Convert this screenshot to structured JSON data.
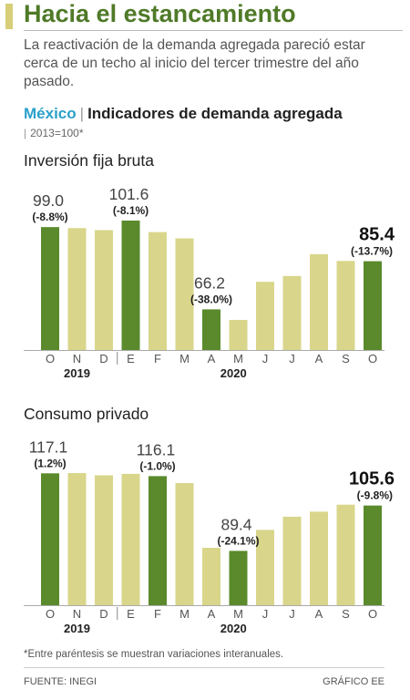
{
  "header": {
    "title": "Hacia el estancamiento",
    "subtitle": "La reactivación de la demanda agregada pareció estar cerca de un techo al inicio del tercer trimestre del año pasado."
  },
  "section": {
    "country": "México",
    "separator": "|",
    "indicator": "Indicadores de demanda agregada",
    "base_pipe": "|",
    "base": "2013=100*"
  },
  "colors": {
    "dark_green": "#5a8a2c",
    "light_green": "#d9d68b",
    "title_green": "#4f7a28",
    "accent_blue": "#2ba0c8"
  },
  "chart_data": [
    {
      "type": "bar",
      "title": "Inversión fija bruta",
      "categories": [
        "O",
        "N",
        "D",
        "E",
        "F",
        "M",
        "A",
        "M",
        "J",
        "J",
        "A",
        "S",
        "O"
      ],
      "year_labels": [
        {
          "label": "2019",
          "start": 0,
          "end": 2
        },
        {
          "label": "2020",
          "start": 3,
          "end": 12
        }
      ],
      "values": [
        99.0,
        98.6,
        97.8,
        101.6,
        97.0,
        94.5,
        66.2,
        62.0,
        77.2,
        79.5,
        88.2,
        85.5,
        85.4
      ],
      "highlight": [
        0,
        3,
        6,
        12
      ],
      "annotations": [
        {
          "index": 0,
          "value": "99.0",
          "change": "(-8.8%)"
        },
        {
          "index": 3,
          "value": "101.6",
          "change": "(-8.1%)"
        },
        {
          "index": 6,
          "value": "66.2",
          "change": "(-38.0%)"
        },
        {
          "index": 12,
          "value": "85.4",
          "change": "(-13.7%)"
        }
      ]
    },
    {
      "type": "bar",
      "title": "Consumo privado",
      "categories": [
        "O",
        "N",
        "D",
        "E",
        "F",
        "M",
        "A",
        "M",
        "J",
        "J",
        "A",
        "S",
        "O"
      ],
      "year_labels": [
        {
          "label": "2019",
          "start": 0,
          "end": 2
        },
        {
          "label": "2020",
          "start": 3,
          "end": 12
        }
      ],
      "values": [
        117.1,
        117.2,
        116.4,
        116.9,
        116.1,
        113.6,
        90.5,
        89.4,
        96.9,
        101.6,
        103.4,
        105.9,
        105.6
      ],
      "highlight": [
        0,
        4,
        7,
        12
      ],
      "annotations": [
        {
          "index": 0,
          "value": "117.1",
          "change": "(1.2%)"
        },
        {
          "index": 4,
          "value": "116.1",
          "change": "(-1.0%)"
        },
        {
          "index": 7,
          "value": "89.4",
          "change": "(-24.1%)"
        },
        {
          "index": 12,
          "value": "105.6",
          "change": "(-9.8%)"
        }
      ]
    }
  ],
  "footer": {
    "footnote": "*Entre paréntesis se muestran variaciones interanuales.",
    "source": "FUENTE: INEGI",
    "credit": "GRÁFICO EE"
  }
}
